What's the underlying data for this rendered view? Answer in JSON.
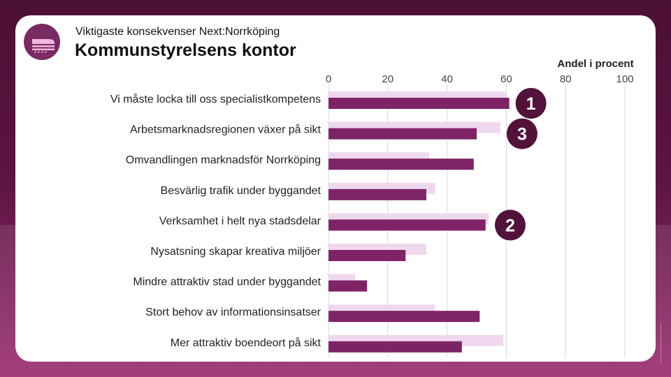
{
  "header": {
    "subtitle": "Viktigaste konsekvenser Next:Norrköping",
    "title": "Kommunstyrelsens kontor"
  },
  "colors": {
    "primary_bar": "#7e2466",
    "secondary_bar": "#efd8ee",
    "badge": "#52123a",
    "frame": "#5a1440"
  },
  "icons": {
    "logo": "train-logo-icon"
  },
  "chart_data": {
    "type": "bar",
    "orientation": "horizontal",
    "xlabel": "Andel i procent",
    "xlim": [
      0,
      100
    ],
    "xticks": [
      0,
      20,
      40,
      60,
      80,
      100
    ],
    "grid": true,
    "categories": [
      "Vi måste locka till oss specialistkompetens",
      "Arbetsmarknadsregionen växer på sikt",
      "Omvandlingen marknadsför Norrköping",
      "Besvärlig trafik under byggandet",
      "Verksamhet i helt nya stadsdelar",
      "Nysatsning skapar kreativa miljöer",
      "Mindre attraktiv stad under byggandet",
      "Stort behov av informationsinsatser",
      "Mer attraktiv boendeort på sikt"
    ],
    "series": [
      {
        "values": [
          60,
          58,
          34,
          36,
          54,
          33,
          9,
          36,
          59
        ]
      },
      {
        "values": [
          61,
          50,
          49,
          33,
          53,
          26,
          13,
          51,
          45
        ]
      }
    ],
    "rank_badges": [
      {
        "category_index": 0,
        "label": "1"
      },
      {
        "category_index": 4,
        "label": "2"
      },
      {
        "category_index": 1,
        "label": "3"
      }
    ]
  }
}
